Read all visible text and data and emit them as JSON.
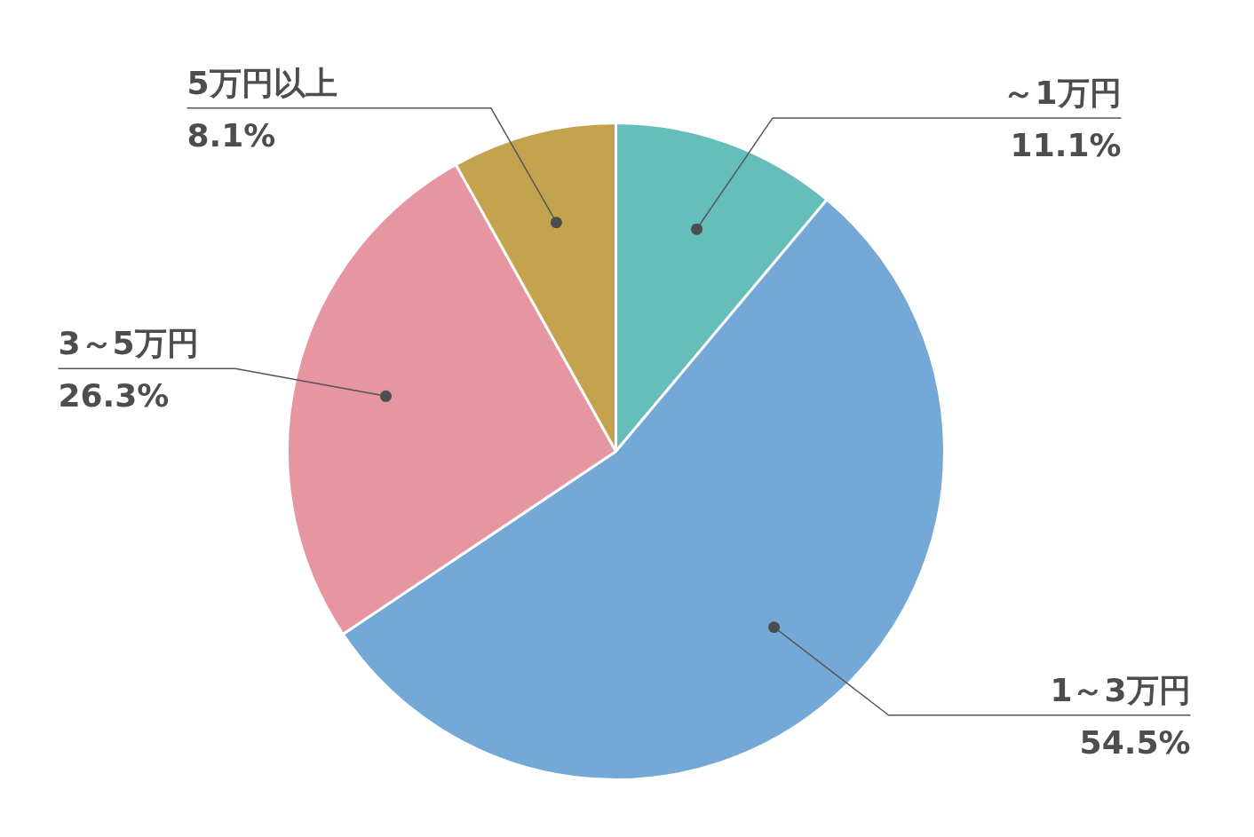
{
  "chart_data": {
    "type": "pie",
    "categories": [
      "～1万円",
      "1～3万円",
      "3～5万円",
      "5万円以上"
    ],
    "values": [
      11.1,
      54.5,
      26.3,
      8.1
    ],
    "colors": [
      "#66bebb",
      "#74a9d7",
      "#e596a0",
      "#c3a34e"
    ],
    "value_labels": [
      "11.1%",
      "54.5%",
      "26.3%",
      "8.1%"
    ]
  }
}
